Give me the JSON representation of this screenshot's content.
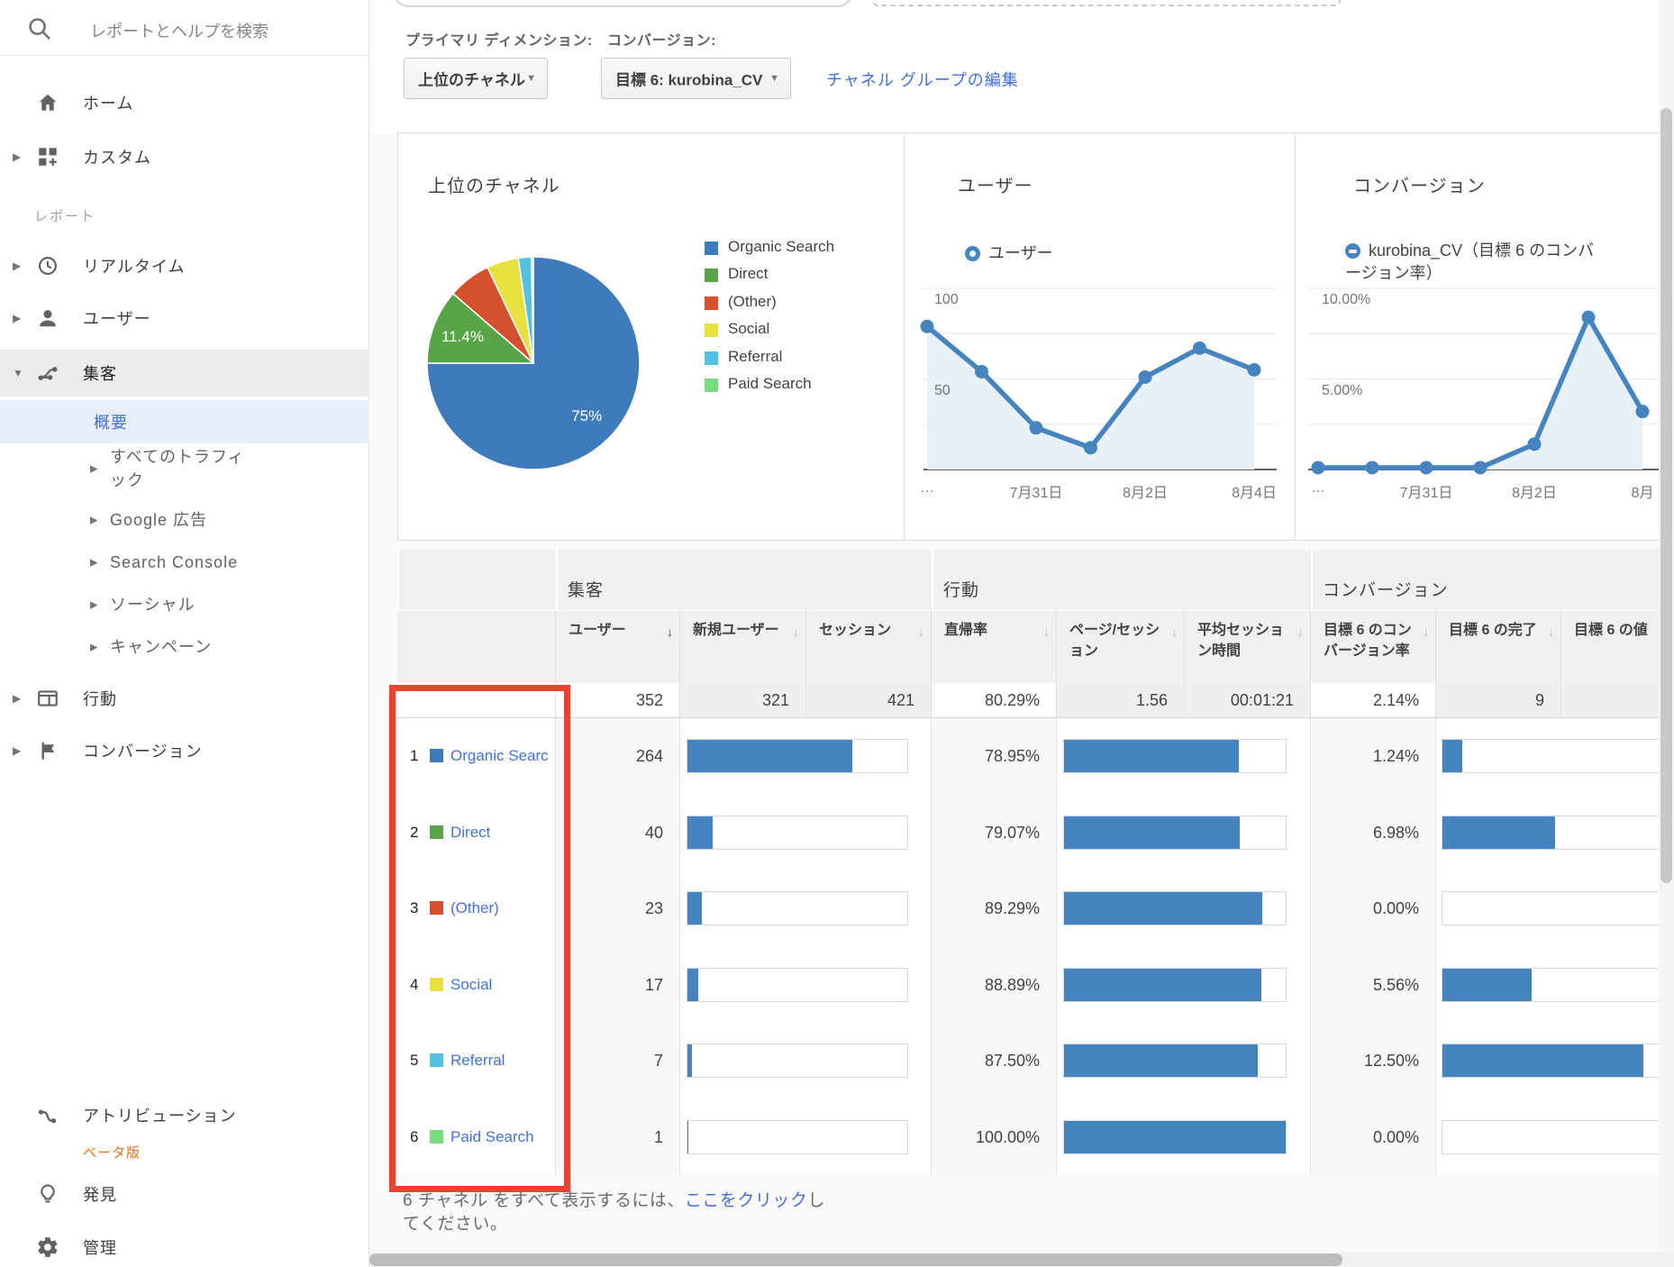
{
  "colors": {
    "ga_blue": "#4584bf",
    "link_blue": "#4272d9",
    "annotation_red": "#e8432d",
    "beta_orange": "#e8710a"
  },
  "sidebar": {
    "search_placeholder": "レポートとヘルプを検索",
    "section_label": "レポート",
    "items": [
      {
        "label": "ホーム",
        "icon": "home-icon"
      },
      {
        "label": "カスタム",
        "icon": "custom-icon",
        "expandable": true
      },
      {
        "label": "リアルタイム",
        "icon": "clock-icon",
        "expandable": true
      },
      {
        "label": "ユーザー",
        "icon": "person-icon",
        "expandable": true
      },
      {
        "label": "集客",
        "icon": "acquisition-icon",
        "expanded": true,
        "selected": true
      },
      {
        "label": "概要",
        "type": "sub",
        "active": true
      },
      {
        "label": "すべてのトラフィック",
        "type": "sub2",
        "expandable": true
      },
      {
        "label": "Google 広告",
        "type": "sub2",
        "expandable": true
      },
      {
        "label": "Search Console",
        "type": "sub2",
        "expandable": true
      },
      {
        "label": "ソーシャル",
        "type": "sub2",
        "expandable": true
      },
      {
        "label": "キャンペーン",
        "type": "sub2",
        "expandable": true
      },
      {
        "label": "行動",
        "icon": "behavior-icon",
        "expandable": true
      },
      {
        "label": "コンバージョン",
        "icon": "flag-icon",
        "expandable": true
      }
    ],
    "bottom_items": [
      {
        "label": "アトリビューション",
        "badge": "ベータ版",
        "icon": "attribution-icon"
      },
      {
        "label": "発見",
        "icon": "lightbulb-icon"
      },
      {
        "label": "管理",
        "icon": "gear-icon"
      }
    ]
  },
  "toolbar": {
    "primary_dimension_label": "プライマリ ディメンション:",
    "conversion_label": "コンバージョン:",
    "primary_dimension_value": "上位のチャネル",
    "conversion_value": "目標 6: kurobina_CV",
    "edit_link": "チャネル グループの編集"
  },
  "chart_data": [
    {
      "type": "pie",
      "title": "上位のチャネル",
      "categories": [
        "Organic Search",
        "Direct",
        "(Other)",
        "Social",
        "Referral",
        "Paid Search"
      ],
      "values": [
        264,
        40,
        23,
        17,
        7,
        1
      ],
      "slice_labels": [
        "75%",
        "11.4%",
        null,
        null,
        null,
        null
      ],
      "colors": [
        "#3e7bbb",
        "#58a447",
        "#d5512e",
        "#e6e13e",
        "#53c2e2",
        "#78dc7f"
      ],
      "legend_position": "right"
    },
    {
      "type": "line",
      "title": "ユーザー",
      "legend": "ユーザー",
      "series": [
        {
          "name": "ユーザー",
          "values": [
            79,
            54,
            23,
            12,
            51,
            67,
            55
          ]
        }
      ],
      "x_tick_labels": [
        "…",
        "7月31日",
        "8月2日",
        "8月4日"
      ],
      "x_tick_indexes": [
        0,
        2,
        4,
        6
      ],
      "y_ticks": [
        {
          "value": 100,
          "label": "100"
        },
        {
          "value": 50,
          "label": "50"
        }
      ],
      "ylim": [
        0,
        100
      ],
      "grid_step": 25,
      "grid": true
    },
    {
      "type": "line",
      "title": "コンバージョン",
      "legend": "kurobina_CV（目標 6 のコンバージョン率）",
      "series": [
        {
          "name": "kurobina_CV（目標 6 のコンバージョン率）",
          "values": [
            0.1,
            0.1,
            0.1,
            0.1,
            1.4,
            8.4,
            3.2
          ]
        }
      ],
      "x_tick_labels": [
        "…",
        "7月31日",
        "8月2日",
        "8月"
      ],
      "x_tick_indexes": [
        0,
        2,
        4,
        6
      ],
      "y_ticks": [
        {
          "value": 10,
          "label": "10.00%"
        },
        {
          "value": 5,
          "label": "5.00%"
        }
      ],
      "ylim": [
        0,
        10
      ],
      "grid_step": 2.5,
      "grid": true
    }
  ],
  "table": {
    "group_headers": [
      "集客",
      "行動",
      "コンバージョン"
    ],
    "columns": [
      {
        "label": "ユーザー",
        "sorted": "desc"
      },
      {
        "label": "新規ユーザー"
      },
      {
        "label": "セッション"
      },
      {
        "label": "直帰率"
      },
      {
        "label": "ページ/セッション"
      },
      {
        "label": "平均セッション時間"
      },
      {
        "label": "目標 6 のコンバージョン率"
      },
      {
        "label": "目標 6 の完了"
      },
      {
        "label": "目標 6 の値"
      }
    ],
    "totals": [
      "352",
      "321",
      "421",
      "80.29%",
      "1.56",
      "00:01:21",
      "2.14%",
      "9",
      ""
    ],
    "rows": [
      {
        "rank": "1",
        "channel": "Organic Search",
        "color": "#3e7bbb",
        "users": "264",
        "users_bar": 0.75,
        "bounce": "78.95%",
        "bounce_bar": 0.79,
        "cvr": "1.24%",
        "cvr_bar": 0.089
      },
      {
        "rank": "2",
        "channel": "Direct",
        "color": "#58a447",
        "users": "40",
        "users_bar": 0.114,
        "bounce": "79.07%",
        "bounce_bar": 0.791,
        "cvr": "6.98%",
        "cvr_bar": 0.499
      },
      {
        "rank": "3",
        "channel": "(Other)",
        "color": "#d5512e",
        "users": "23",
        "users_bar": 0.065,
        "bounce": "89.29%",
        "bounce_bar": 0.893,
        "cvr": "0.00%",
        "cvr_bar": 0
      },
      {
        "rank": "4",
        "channel": "Social",
        "color": "#e6e13e",
        "users": "17",
        "users_bar": 0.048,
        "bounce": "88.89%",
        "bounce_bar": 0.889,
        "cvr": "5.56%",
        "cvr_bar": 0.397
      },
      {
        "rank": "5",
        "channel": "Referral",
        "color": "#53c2e2",
        "users": "7",
        "users_bar": 0.02,
        "bounce": "87.50%",
        "bounce_bar": 0.875,
        "cvr": "12.50%",
        "cvr_bar": 0.893
      },
      {
        "rank": "6",
        "channel": "Paid Search",
        "color": "#78dc7f",
        "users": "1",
        "users_bar": 0.003,
        "bounce": "100.00%",
        "bounce_bar": 1,
        "cvr": "0.00%",
        "cvr_bar": 0
      }
    ],
    "footer": {
      "prefix": "6 チャネル をすべて表示するには、",
      "link": "ここをクリック",
      "suffix": "してください。"
    }
  }
}
